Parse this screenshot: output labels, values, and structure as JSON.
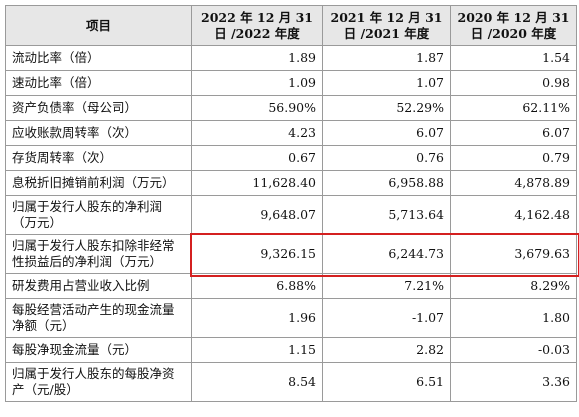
{
  "header": {
    "item": "项目",
    "col_2022": "2022 年 12 月 31 日 /2022 年度",
    "col_2021": "2021 年 12 月 31 日 /2021 年度",
    "col_2020": "2020 年 12 月 31 日 /2020 年度"
  },
  "rows": [
    {
      "label": "流动比率（倍）",
      "v2022": "1.89",
      "v2021": "1.87",
      "v2020": "1.54"
    },
    {
      "label": "速动比率（倍）",
      "v2022": "1.09",
      "v2021": "1.07",
      "v2020": "0.98"
    },
    {
      "label": "资产负债率（母公司）",
      "v2022": "56.90%",
      "v2021": "52.29%",
      "v2020": "62.11%"
    },
    {
      "label": "应收账款周转率（次）",
      "v2022": "4.23",
      "v2021": "6.07",
      "v2020": "6.07"
    },
    {
      "label": "存货周转率（次）",
      "v2022": "0.67",
      "v2021": "0.76",
      "v2020": "0.79"
    },
    {
      "label": "息税折旧摊销前利润（万元）",
      "v2022": "11,628.40",
      "v2021": "6,958.88",
      "v2020": "4,878.89"
    },
    {
      "label": "归属于发行人股东的净利润（万元）",
      "v2022": "9,648.07",
      "v2021": "5,713.64",
      "v2020": "4,162.48"
    },
    {
      "label": "归属于发行人股东扣除非经常性损益后的净利润（万元）",
      "v2022": "9,326.15",
      "v2021": "6,244.73",
      "v2020": "3,679.63",
      "highlighted": true
    },
    {
      "label": "研发费用占营业收入比例",
      "v2022": "6.88%",
      "v2021": "7.21%",
      "v2020": "8.29%"
    },
    {
      "label": "每股经营活动产生的现金流量净额（元）",
      "v2022": "1.96",
      "v2021": "-1.07",
      "v2020": "1.80"
    },
    {
      "label": "每股净现金流量（元）",
      "v2022": "1.15",
      "v2021": "2.82",
      "v2020": "-0.03"
    },
    {
      "label": "归属于发行人股东的每股净资产（元/股）",
      "v2022": "8.54",
      "v2021": "6.51",
      "v2020": "3.36"
    }
  ],
  "highlight_color": "#d42020"
}
